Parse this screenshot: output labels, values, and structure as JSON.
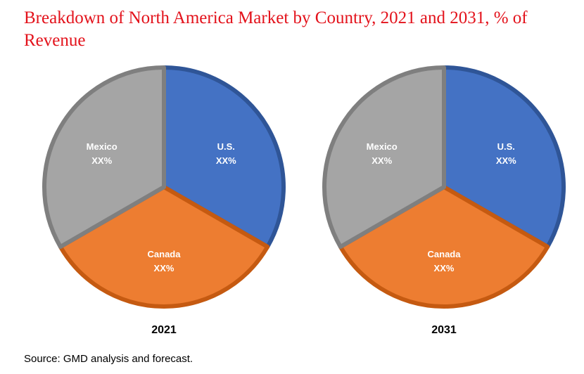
{
  "chart_data": {
    "type": "pie",
    "title": "Breakdown of North America Market by Country, 2021 and 2031, % of Revenue",
    "source": "Source: GMD analysis and forecast.",
    "colors": {
      "U.S.": "#4472c4",
      "Canada": "#ed7d31",
      "Mexico": "#a5a5a5",
      "title": "#e3121b"
    },
    "pies": [
      {
        "year": "2021",
        "slices": [
          {
            "label": "U.S.",
            "value_label": "XX%",
            "value": 33.33
          },
          {
            "label": "Canada",
            "value_label": "XX%",
            "value": 33.33
          },
          {
            "label": "Mexico",
            "value_label": "XX%",
            "value": 33.34
          }
        ]
      },
      {
        "year": "2031",
        "slices": [
          {
            "label": "U.S.",
            "value_label": "XX%",
            "value": 33.33
          },
          {
            "label": "Canada",
            "value_label": "XX%",
            "value": 33.33
          },
          {
            "label": "Mexico",
            "value_label": "XX%",
            "value": 33.34
          }
        ]
      }
    ]
  }
}
